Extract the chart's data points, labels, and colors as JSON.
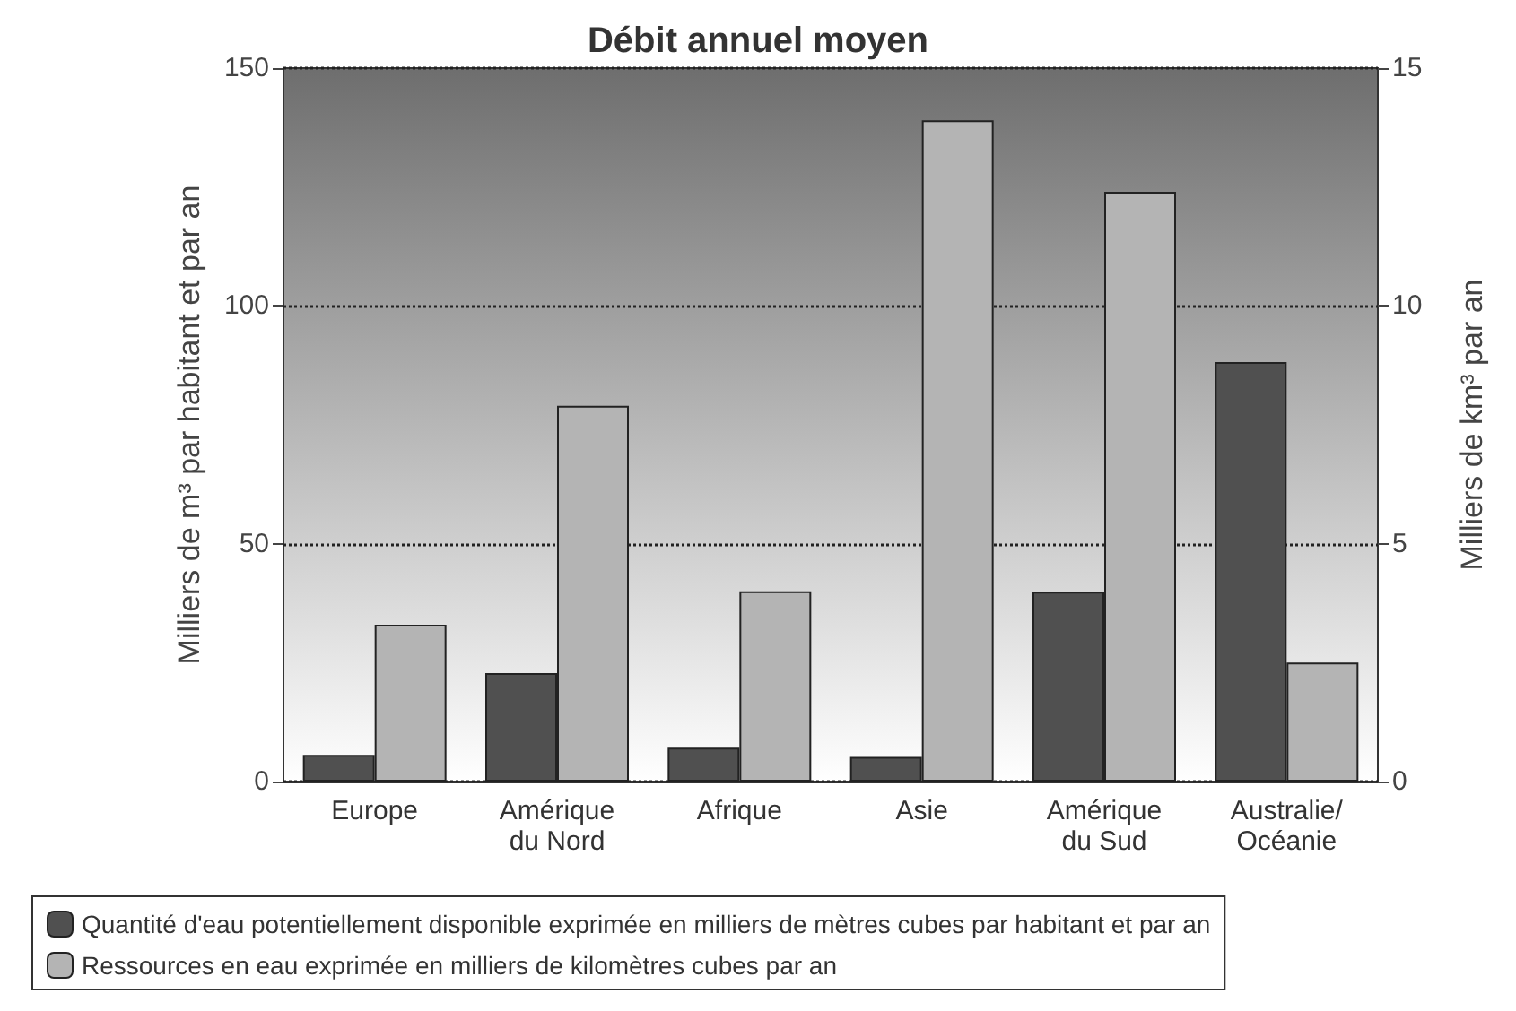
{
  "chart_data": {
    "type": "bar",
    "title": "Débit annuel moyen",
    "categories": [
      "Europe",
      "Amérique\ndu Nord",
      "Afrique",
      "Asie",
      "Amérique\ndu Sud",
      "Australie/\nOcéanie"
    ],
    "series": [
      {
        "name": "Quantité d'eau potentiellement disponible exprimée en milliers de mètres cubes par habitant et par an",
        "color": "#505050",
        "values": [
          5.6,
          22.8,
          7.1,
          5.2,
          39.9,
          88.2
        ]
      },
      {
        "name": "Ressources en eau exprimée en milliers de kilomètres cubes par an",
        "color": "#b4b4b4",
        "axis": "y2",
        "values": [
          3.3,
          7.9,
          4.0,
          13.9,
          12.4,
          2.5
        ]
      }
    ],
    "ylabel": "Milliers de m³ par habitant et par an",
    "y2label": "Milliers de km³ par an",
    "ylim": [
      0,
      150
    ],
    "yticks": [
      0,
      50,
      100,
      150
    ],
    "y2lim": [
      0,
      15
    ],
    "y2ticks": [
      0,
      5,
      10,
      15
    ],
    "grid": "y",
    "line_style": "dotted",
    "legend": "bottom"
  }
}
